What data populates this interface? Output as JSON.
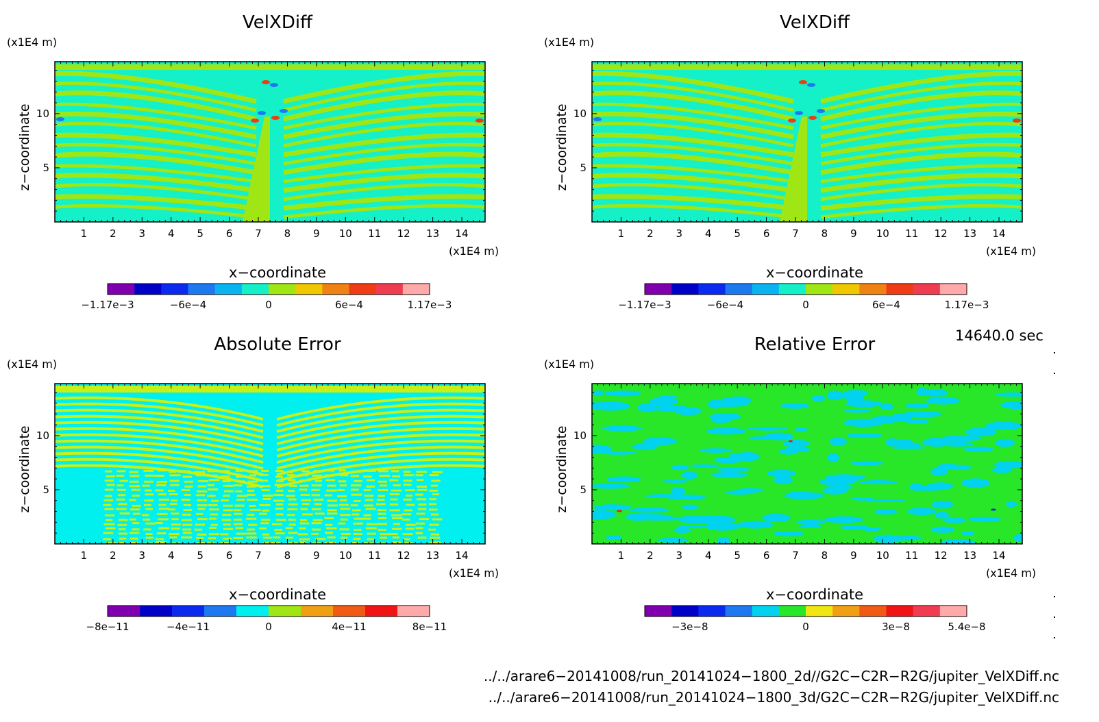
{
  "panels": [
    {
      "title": "VelXDiff",
      "y_unit": "(x1E4 m)",
      "x_unit": "(x1E4 m)",
      "xlabel": "x−coordinate",
      "ylabel": "z−coordinate",
      "colorbar": {
        "colors": [
          "#8000b0",
          "#0000c8",
          "#0a2af0",
          "#1e78f0",
          "#0ab4f0",
          "#14f0c8",
          "#a0e614",
          "#f0c800",
          "#f08214",
          "#f03c14",
          "#f03c50",
          "#ffaaaa"
        ],
        "labels": [
          "−1.17e−3",
          "−6e−4",
          "0",
          "6e−4",
          "1.17e−3"
        ]
      },
      "field": {
        "base": "#14f0c8",
        "alt": "#a0e614",
        "cool": "#1e78f0",
        "warm": "#f03c14",
        "style": "stripes"
      }
    },
    {
      "title": "VelXDiff",
      "y_unit": "(x1E4 m)",
      "x_unit": "(x1E4 m)",
      "xlabel": "x−coordinate",
      "ylabel": "z−coordinate",
      "colorbar": {
        "colors": [
          "#8000b0",
          "#0000c8",
          "#0a2af0",
          "#1e78f0",
          "#0ab4f0",
          "#14f0c8",
          "#a0e614",
          "#f0c800",
          "#f08214",
          "#f03c14",
          "#f03c50",
          "#ffaaaa"
        ],
        "labels": [
          "−1.17e−3",
          "−6e−4",
          "0",
          "6e−4",
          "1.17e−3"
        ]
      },
      "field": {
        "base": "#14f0c8",
        "alt": "#a0e614",
        "cool": "#1e78f0",
        "warm": "#f03c14",
        "style": "stripes"
      }
    },
    {
      "title": "Absolute Error",
      "y_unit": "(x1E4 m)",
      "x_unit": "(x1E4 m)",
      "xlabel": "x−coordinate",
      "ylabel": "z−coordinate",
      "colorbar": {
        "colors": [
          "#8000b0",
          "#0000c8",
          "#0a2af0",
          "#1e78f0",
          "#00f0f0",
          "#a0e614",
          "#f0a014",
          "#f05a14",
          "#f01414",
          "#ffaaaa"
        ],
        "labels": [
          "−8e−11",
          "−4e−11",
          "0",
          "4e−11",
          "8e−11"
        ]
      },
      "field": {
        "base": "#00f0f0",
        "alt": "#c8f014",
        "cool": "#00f0f0",
        "warm": "#c8f014",
        "style": "noise"
      }
    },
    {
      "title": "Relative Error",
      "y_unit": "(x1E4 m)",
      "x_unit": "(x1E4 m)",
      "xlabel": "x−coordinate",
      "ylabel": "z−coordinate",
      "colorbar": {
        "colors": [
          "#8000b0",
          "#0000c8",
          "#0a2af0",
          "#1e78f0",
          "#00d2f0",
          "#28e628",
          "#f0e614",
          "#f0a014",
          "#f05a14",
          "#f01414",
          "#f03c50",
          "#ffaaaa"
        ],
        "labels": [
          "−3e−8",
          "0",
          "3e−8",
          "5.4e−8"
        ]
      },
      "field": {
        "base": "#28e628",
        "alt": "#00d2f0",
        "cool": "#0a2af0",
        "warm": "#f01414",
        "style": "blobs"
      }
    }
  ],
  "chart_data": {
    "type": "heatmap",
    "x_ticks": [
      1,
      2,
      3,
      4,
      5,
      6,
      7,
      8,
      9,
      10,
      11,
      12,
      13,
      14
    ],
    "y_ticks": [
      5,
      10
    ],
    "xlim": [
      0,
      14.8
    ],
    "ylim": [
      0,
      14.8
    ],
    "x_unit": "(x1E4 m)",
    "y_unit": "(x1E4 m)",
    "xlabel": "x−coordinate",
    "ylabel": "z−coordinate"
  },
  "time_label": "14640.0 sec",
  "file_paths": [
    "../../arare6−20141008/run_20141024−1800_2d//G2C−C2R−R2G/jupiter_VelXDiff.nc",
    "../../arare6−20141008/run_20141024−1800_3d/G2C−C2R−R2G/jupiter_VelXDiff.nc"
  ]
}
